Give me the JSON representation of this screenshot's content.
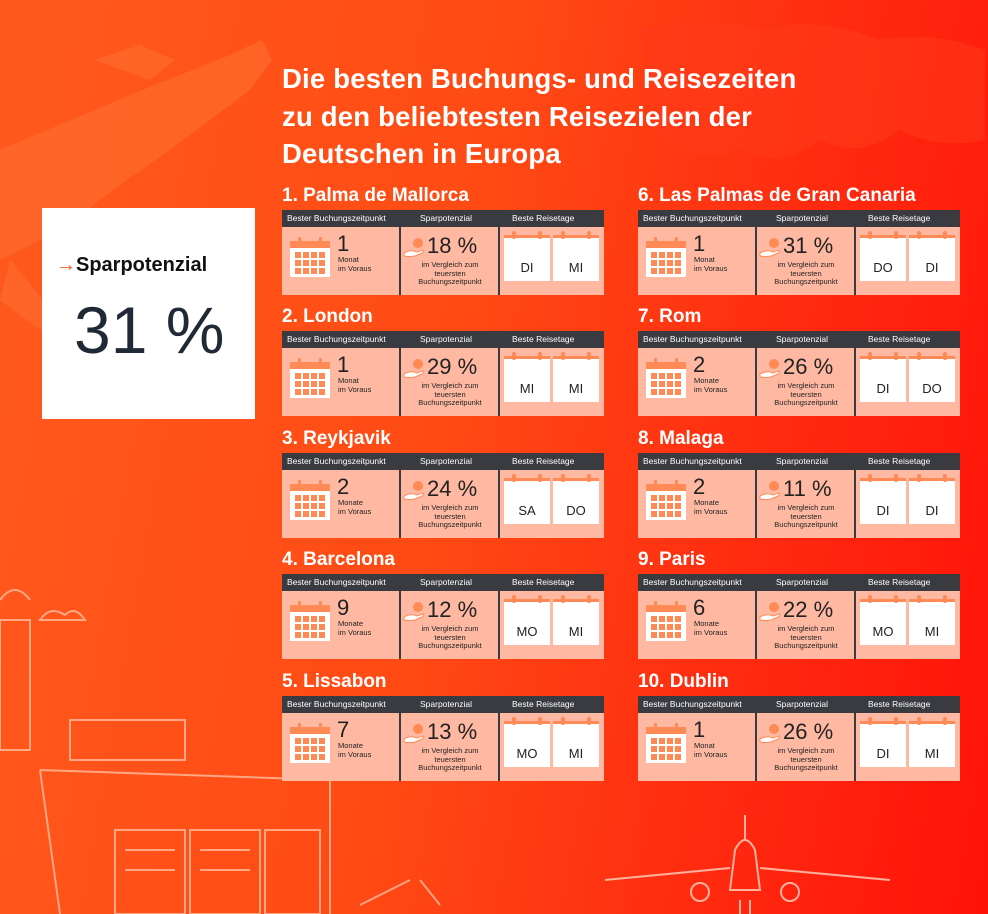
{
  "title_lines": [
    "Die besten Buchungs- und Reisezeiten",
    "zu den beliebtesten Reisezielen der",
    "Deutschen in Europa"
  ],
  "highlight": {
    "label": "Sparpotenzial",
    "value": "31 %"
  },
  "headers": {
    "booking": "Bester Buchungszeitpunkt",
    "savings": "Sparpotenzial",
    "days": "Beste Reisetage"
  },
  "comparison_text": [
    "im Vergleich zum",
    "teuersten",
    "Buchungszeitpunkt"
  ],
  "destinations": [
    {
      "name": "1. Palma de Mallorca",
      "num": "1",
      "unit": [
        "Monat",
        "im Voraus"
      ],
      "pct": "18 %",
      "day1": "DI",
      "day2": "MI"
    },
    {
      "name": "2. London",
      "num": "1",
      "unit": [
        "Monat",
        "im Voraus"
      ],
      "pct": "29 %",
      "day1": "MI",
      "day2": "MI"
    },
    {
      "name": "3. Reykjavik",
      "num": "2",
      "unit": [
        "Monate",
        "im Voraus"
      ],
      "pct": "24 %",
      "day1": "SA",
      "day2": "DO"
    },
    {
      "name": "4. Barcelona",
      "num": "9",
      "unit": [
        "Monate",
        "im Voraus"
      ],
      "pct": "12 %",
      "day1": "MO",
      "day2": "MI"
    },
    {
      "name": "5. Lissabon",
      "num": "7",
      "unit": [
        "Monate",
        "im Voraus"
      ],
      "pct": "13 %",
      "day1": "MO",
      "day2": "MI"
    },
    {
      "name": "6. Las Palmas de Gran Canaria",
      "num": "1",
      "unit": [
        "Monat",
        "im Voraus"
      ],
      "pct": "31 %",
      "day1": "DO",
      "day2": "DI"
    },
    {
      "name": "7. Rom",
      "num": "2",
      "unit": [
        "Monate",
        "im Voraus"
      ],
      "pct": "26 %",
      "day1": "DI",
      "day2": "DO"
    },
    {
      "name": "8. Malaga",
      "num": "2",
      "unit": [
        "Monate",
        "im Voraus"
      ],
      "pct": "11 %",
      "day1": "DI",
      "day2": "DI"
    },
    {
      "name": "9. Paris",
      "num": "6",
      "unit": [
        "Monate",
        "im Voraus"
      ],
      "pct": "22 %",
      "day1": "MO",
      "day2": "MI"
    },
    {
      "name": "10. Dublin",
      "num": "1",
      "unit": [
        "Monat",
        "im Voraus"
      ],
      "pct": "26 %",
      "day1": "DI",
      "day2": "MI"
    }
  ],
  "colors": {
    "background": "#ff4a14",
    "header_bar": "#3a3b40",
    "card_body": "#ffb9a2",
    "accent": "#ff8a55",
    "value_text": "#1f2a36"
  }
}
